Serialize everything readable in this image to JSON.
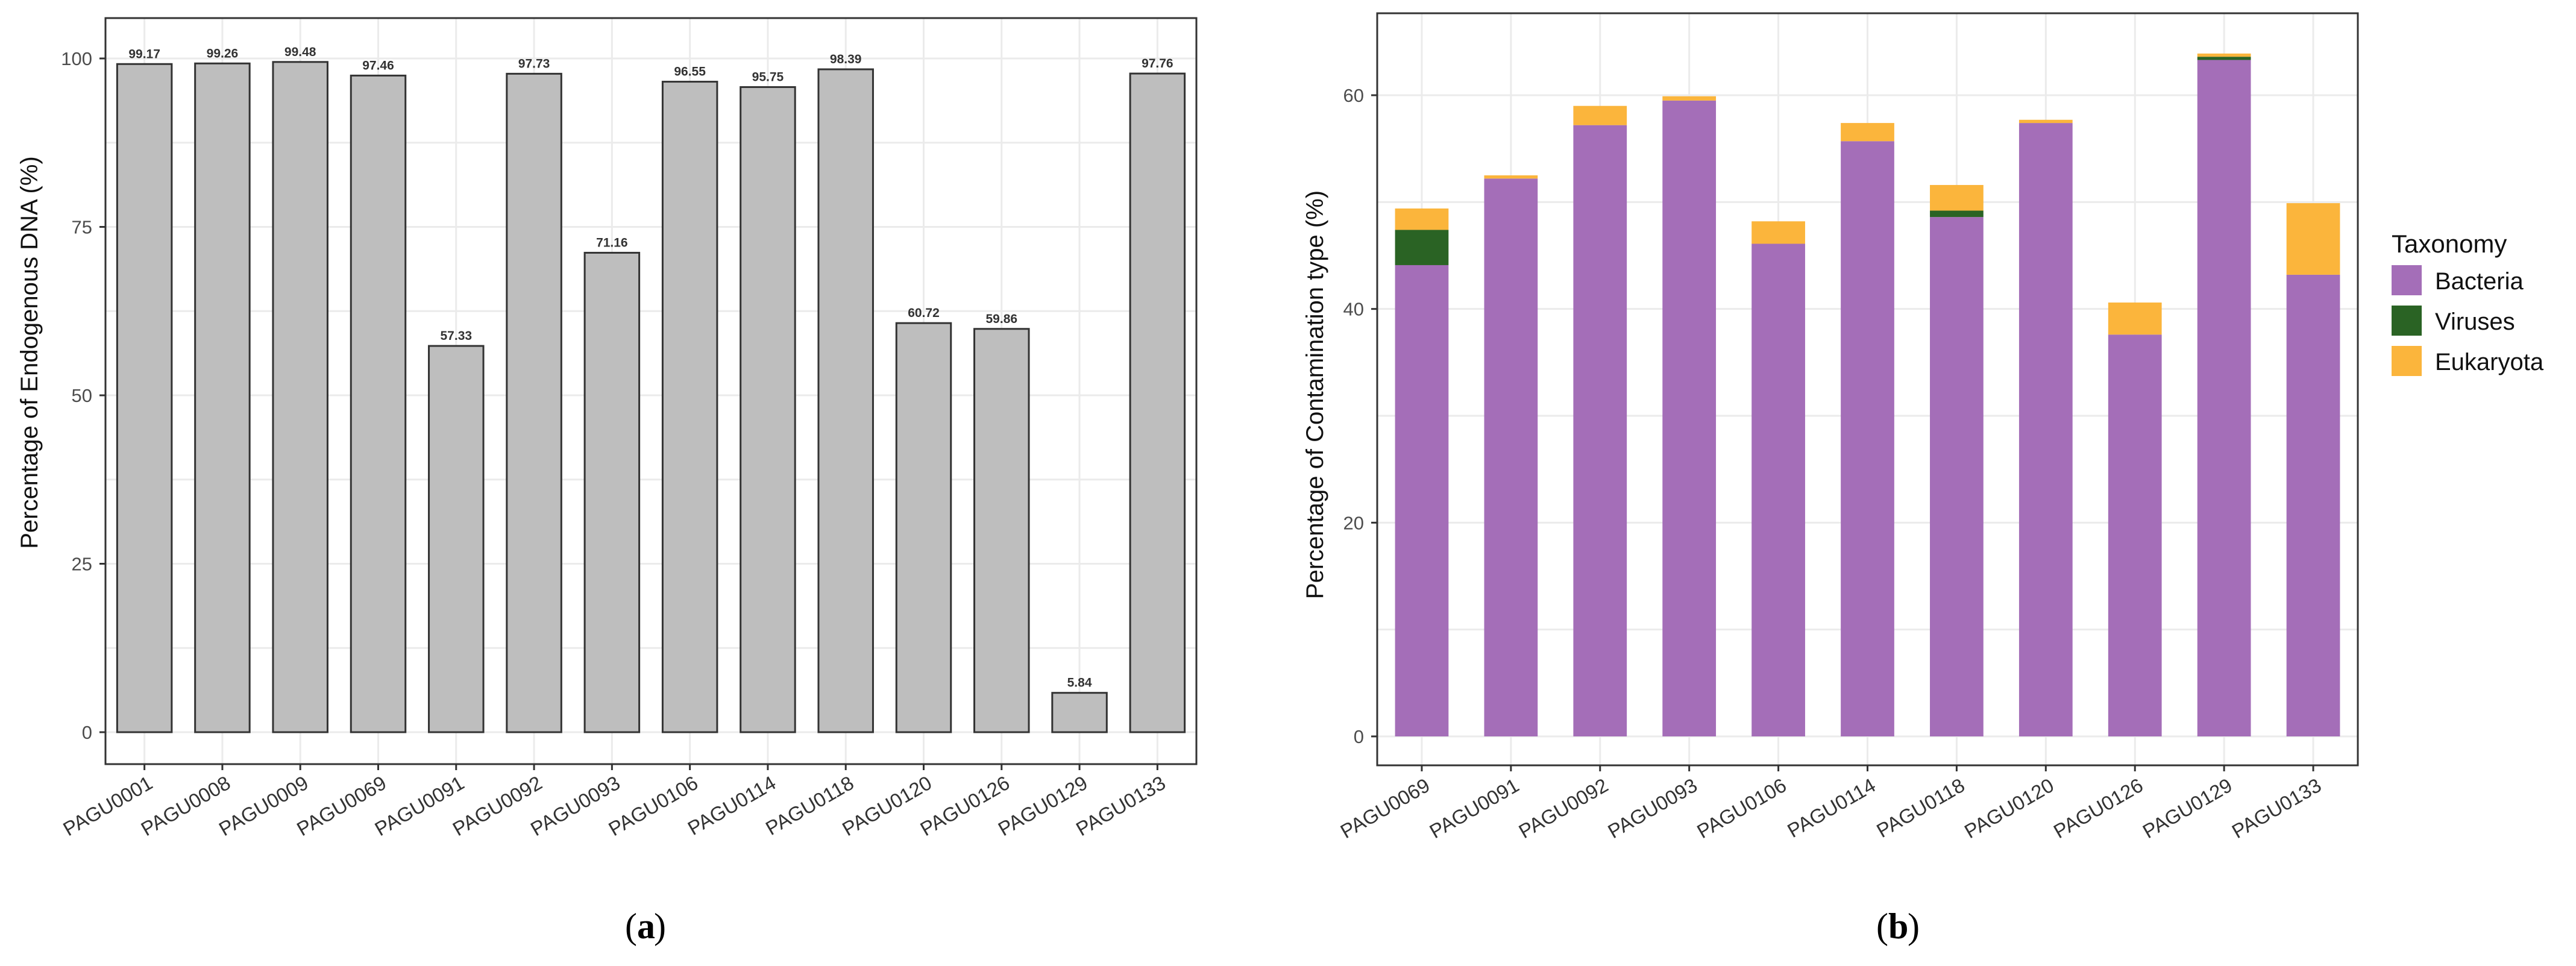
{
  "chart_data": [
    {
      "type": "bar",
      "caption": "(a)",
      "caption_letter": "a",
      "title": "",
      "xlabel": "",
      "ylabel": "Percentage of Endogenous DNA (%)",
      "ylim": [
        0,
        100
      ],
      "yticks": [
        0,
        25,
        50,
        75,
        100
      ],
      "grid": true,
      "categories": [
        "PAGU0001",
        "PAGU0008",
        "PAGU0009",
        "PAGU0069",
        "PAGU0091",
        "PAGU0092",
        "PAGU0093",
        "PAGU0106",
        "PAGU0114",
        "PAGU0118",
        "PAGU0120",
        "PAGU0126",
        "PAGU0129",
        "PAGU0133"
      ],
      "values": [
        99.17,
        99.26,
        99.48,
        97.46,
        57.33,
        97.73,
        71.16,
        96.55,
        95.75,
        98.39,
        60.72,
        59.86,
        5.84,
        97.76
      ],
      "data_labels": [
        "99.17",
        "99.26",
        "99.48",
        "97.46",
        "57.33",
        "97.73",
        "71.16",
        "96.55",
        "95.75",
        "98.39",
        "60.72",
        "59.86",
        "5.84",
        "97.76"
      ],
      "colors": {
        "bar_fill": "#bebebe",
        "bar_stroke": "#333333"
      }
    },
    {
      "type": "bar",
      "stacked": true,
      "caption": "(b)",
      "caption_letter": "b",
      "title": "",
      "xlabel": "",
      "ylabel": "Percentage of Contamination type (%)",
      "ylim": [
        0,
        66
      ],
      "yticks": [
        0,
        20,
        40,
        60
      ],
      "grid": true,
      "categories": [
        "PAGU0069",
        "PAGU0091",
        "PAGU0092",
        "PAGU0093",
        "PAGU0106",
        "PAGU0114",
        "PAGU0118",
        "PAGU0120",
        "PAGU0126",
        "PAGU0129",
        "PAGU0133"
      ],
      "series": [
        {
          "name": "Bacteria",
          "color": "#a46eb8",
          "values": [
            44.1,
            52.2,
            57.2,
            59.5,
            46.1,
            55.7,
            48.6,
            57.4,
            37.6,
            63.3,
            43.2
          ]
        },
        {
          "name": "Viruses",
          "color": "#2a6324",
          "values": [
            3.3,
            0.0,
            0.0,
            0.0,
            0.0,
            0.0,
            0.6,
            0.0,
            0.0,
            0.3,
            0.0
          ]
        },
        {
          "name": "Eukaryota",
          "color": "#fbb53c",
          "values": [
            2.0,
            0.3,
            1.8,
            0.4,
            2.1,
            1.7,
            2.4,
            0.3,
            3.0,
            0.3,
            6.7
          ]
        }
      ],
      "legend": {
        "title": "Taxonomy",
        "position": "right"
      }
    }
  ]
}
